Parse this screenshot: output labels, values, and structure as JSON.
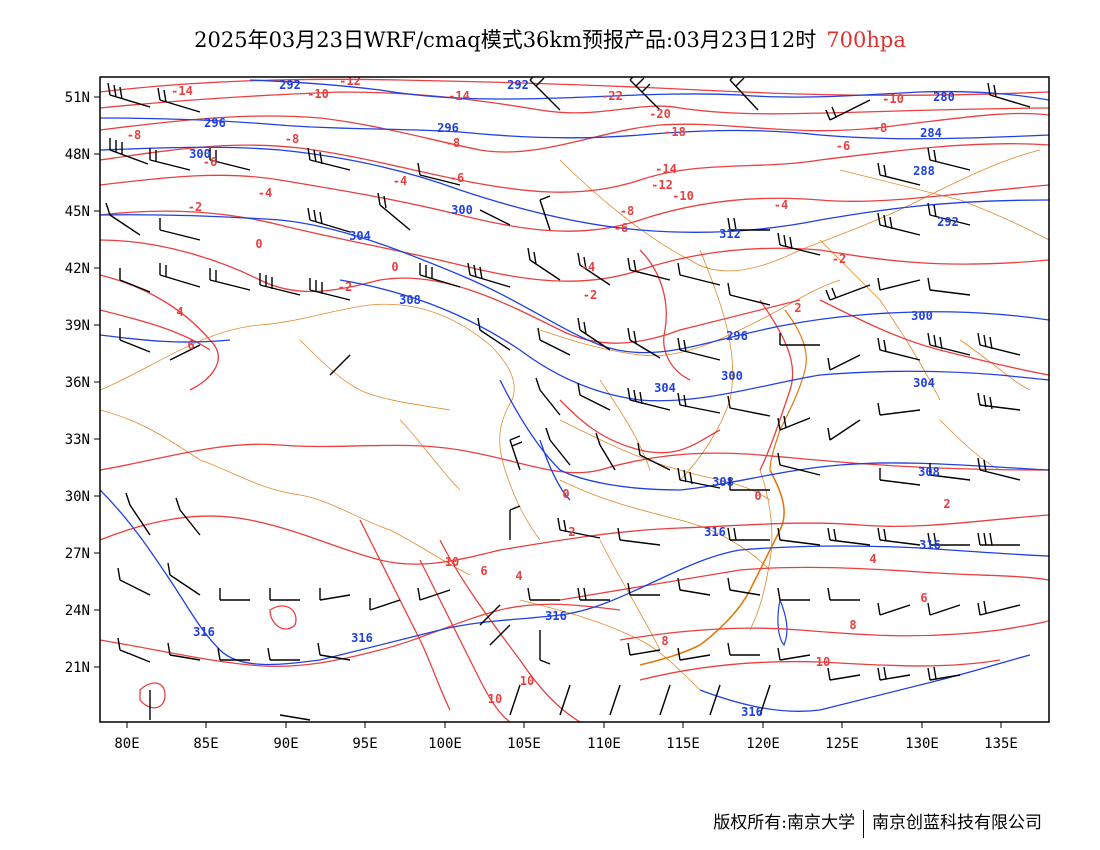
{
  "title": {
    "main": "2025年03月23日WRF/cmaq模式36km预报产品:03月23日12时",
    "level": "700hpa"
  },
  "colors": {
    "temperature": "#e84040",
    "height": "#2040e0",
    "border": "#e08a30",
    "barb": "#000000",
    "level_text": "#e03030"
  },
  "axes": {
    "x_ticks": [
      "80E",
      "85E",
      "90E",
      "95E",
      "100E",
      "105E",
      "110E",
      "115E",
      "120E",
      "125E",
      "130E",
      "135E"
    ],
    "y_ticks": [
      "51N",
      "48N",
      "45N",
      "42N",
      "39N",
      "36N",
      "33N",
      "30N",
      "27N",
      "24N",
      "21N"
    ]
  },
  "height_labels": [
    "292",
    "292",
    "296",
    "296",
    "300",
    "300",
    "304",
    "308",
    "296",
    "300",
    "304",
    "308",
    "316",
    "316",
    "316",
    "316",
    "316",
    "316",
    "292",
    "288",
    "284",
    "280",
    "300",
    "304",
    "308",
    "312"
  ],
  "temp_labels": [
    "-14",
    "-12",
    "-10",
    "-8",
    "-6",
    "-4",
    "-2",
    "0",
    "4",
    "6",
    "-14",
    "-8",
    "-8",
    "-6",
    "-4",
    "-2",
    "0",
    "2",
    "-22",
    "-20",
    "-18",
    "-14",
    "-12",
    "-10",
    "-8",
    "-6",
    "-4",
    "-2",
    "0",
    "2",
    "4",
    "6",
    "8",
    "10",
    "10",
    "10",
    "-10",
    "-8",
    "-6",
    "-4",
    "-2",
    "0",
    "2",
    "4",
    "6",
    "8",
    "10"
  ],
  "credit": {
    "left": "版权所有:南京大学",
    "right": "南京创蓝科技有限公司"
  }
}
